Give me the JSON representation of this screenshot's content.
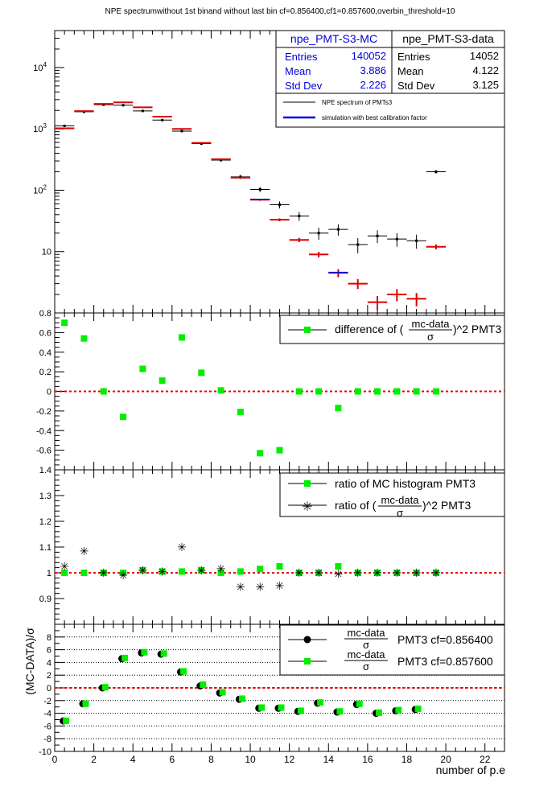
{
  "title": "NPE spectrumwithout 1st binand without last bin cf=0.856400,cf1=0.857600,overbin_threshold=10",
  "xlabel": "number of p.e",
  "ylabel_bottom": "(MC-DATA)/σ",
  "colors": {
    "mc": "#dd0000",
    "data": "#000000",
    "green": "#00ee00",
    "mc_stats_text": "#0000dd",
    "refline": "#ee0000"
  },
  "stats": {
    "mc": {
      "name": "npe_PMT-S3-MC",
      "rows": [
        [
          "Entries",
          "140052"
        ],
        [
          "Mean",
          "3.886"
        ],
        [
          "Std Dev",
          "2.226"
        ]
      ]
    },
    "data": {
      "name": "npe_PMT-S3-data",
      "rows": [
        [
          "Entries",
          "14052"
        ],
        [
          "Mean",
          "4.122"
        ],
        [
          "Std Dev",
          "3.125"
        ]
      ]
    }
  },
  "legend1": [
    "NPE spectrum of PMTs3",
    "simulation with best calibration factor"
  ],
  "legend2": {
    "pre": "difference of (",
    "frac_num": "mc-data",
    "frac_den": "σ",
    "post": ")^2 PMT3"
  },
  "legend3": {
    "line1": "ratio of MC histogram  PMT3",
    "pre": "ratio of (",
    "frac_num": "mc-data",
    "frac_den": "σ",
    "post": ")^2 PMT3"
  },
  "legend4": {
    "frac_num": "mc-data",
    "frac_den": "σ",
    "post1": "PMT3 cf=0.856400",
    "post2": "PMT3 cf=0.857600"
  },
  "chart_data": [
    {
      "type": "histogram",
      "panel": "spectrum",
      "xlim": [
        0,
        23
      ],
      "ylim": [
        1,
        40000
      ],
      "log_y": true,
      "y_ticks": [
        "10",
        "10^2",
        "10^3",
        "10^4"
      ],
      "bins": [
        0.5,
        1.5,
        2.5,
        3.5,
        4.5,
        5.5,
        6.5,
        7.5,
        8.5,
        9.5,
        10.5,
        11.5,
        12.5,
        13.5,
        14.5,
        15.5,
        16.5,
        17.5,
        18.5,
        19.5
      ],
      "series": [
        {
          "name": "NPE spectrum of PMTs3",
          "values": [
            1120,
            1900,
            2480,
            2430,
            1960,
            1390,
            920,
            575,
            310,
            165,
            103,
            58,
            38,
            20,
            23,
            13,
            18,
            16,
            15,
            200
          ]
        },
        {
          "name": "simulation with best calibration factor",
          "values": [
            1020,
            1950,
            2550,
            2700,
            2250,
            1580,
            1000,
            590,
            320,
            160,
            70,
            33,
            15.5,
            9,
            4.5,
            3,
            1.5,
            2,
            1.7,
            12
          ]
        }
      ]
    },
    {
      "type": "scatter",
      "panel": "difference",
      "xlim": [
        0,
        23
      ],
      "ylim": [
        -0.8,
        0.8
      ],
      "x": [
        0.5,
        1.5,
        2.5,
        3.5,
        4.5,
        5.5,
        6.5,
        7.5,
        8.5,
        9.5,
        10.5,
        11.5,
        12.5,
        13.5,
        14.5,
        15.5,
        16.5,
        17.5,
        18.5,
        19.5
      ],
      "series": [
        {
          "name": "difference of (mc-data/σ)^2 PMT3",
          "values": [
            0.7,
            0.54,
            0.0,
            -0.26,
            0.23,
            0.11,
            0.55,
            0.19,
            0.01,
            -0.21,
            -0.63,
            -0.6,
            0.0,
            0.0,
            -0.17,
            0.0,
            0.0,
            0.0,
            0.0,
            0.0
          ]
        }
      ]
    },
    {
      "type": "scatter",
      "panel": "ratio",
      "xlim": [
        0,
        23
      ],
      "ylim": [
        0.8,
        1.4
      ],
      "x": [
        0.5,
        1.5,
        2.5,
        3.5,
        4.5,
        5.5,
        6.5,
        7.5,
        8.5,
        9.5,
        10.5,
        11.5,
        12.5,
        13.5,
        14.5,
        15.5,
        16.5,
        17.5,
        18.5,
        19.5
      ],
      "series": [
        {
          "name": "ratio of MC histogram  PMT3",
          "values": [
            1.0,
            1.0,
            1.0,
            1.0,
            1.01,
            1.005,
            1.005,
            1.01,
            1.0,
            1.005,
            1.015,
            1.025,
            1.0,
            1.0,
            1.025,
            1.0,
            1.0,
            1.0,
            1.0,
            1.0
          ]
        },
        {
          "name": "ratio of (mc-data/σ)^2 PMT3",
          "values": [
            1.025,
            1.085,
            1.0,
            0.99,
            1.01,
            1.005,
            1.1,
            1.01,
            1.015,
            0.945,
            0.945,
            0.95,
            1.0,
            1.0,
            0.995,
            1.0,
            1.0,
            1.0,
            1.0,
            1.0
          ]
        }
      ]
    },
    {
      "type": "scatter",
      "panel": "pulls",
      "xlim": [
        0,
        23
      ],
      "ylim": [
        -10,
        10
      ],
      "x": [
        0.5,
        1.5,
        2.5,
        3.5,
        4.5,
        5.5,
        6.5,
        7.5,
        8.5,
        9.5,
        10.5,
        11.5,
        12.5,
        13.5,
        14.5,
        15.5,
        16.5,
        17.5,
        18.5
      ],
      "series": [
        {
          "name": "PMT3 cf=0.856400",
          "values": [
            -5.2,
            -2.5,
            0.0,
            4.6,
            5.5,
            5.3,
            2.5,
            0.3,
            -0.8,
            -1.8,
            -3.2,
            -3.2,
            -3.7,
            -2.4,
            -3.8,
            -2.6,
            -4.0,
            -3.6,
            -3.4
          ]
        },
        {
          "name": "PMT3 cf=0.857600",
          "values": [
            -5.2,
            -2.5,
            0.1,
            4.7,
            5.6,
            5.4,
            2.6,
            0.5,
            -0.7,
            -1.7,
            -3.1,
            -3.1,
            -3.6,
            -2.3,
            -3.7,
            -2.5,
            -3.9,
            -3.5,
            -3.3
          ]
        }
      ]
    }
  ]
}
